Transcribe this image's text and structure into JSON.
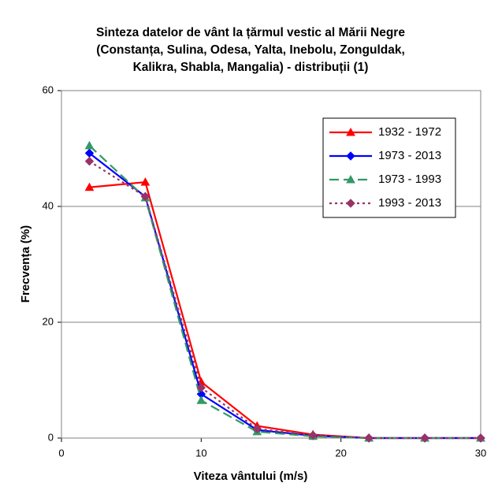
{
  "chart_data": {
    "type": "line",
    "title": [
      "Sinteza datelor de vânt la țărmul vestic al Mării Negre",
      "(Constanța, Sulina, Odesa, Yalta, Inebolu, Zonguldak,",
      "Kalikra, Shabla, Mangalia) - distribuții (1)"
    ],
    "x_label": "Viteza vântului (m/s)",
    "y_label": "Frecvența (%)",
    "x": [
      2,
      6,
      10,
      14,
      18,
      22,
      26,
      30
    ],
    "xlim": [
      0,
      30
    ],
    "xticks": [
      0,
      10,
      20,
      30
    ],
    "ylim": [
      0,
      60
    ],
    "yticks": [
      0,
      20,
      40,
      60
    ],
    "grid": true,
    "legend": "upper right",
    "series": [
      {
        "name": "1932 - 1972",
        "color": "#ff0000",
        "marker": "triangle",
        "dash": "solid",
        "values": [
          43.3,
          44.2,
          9.7,
          2.1,
          0.6,
          0,
          0,
          0
        ]
      },
      {
        "name": "1973 - 2013",
        "color": "#0000ff",
        "marker": "diamond",
        "dash": "solid",
        "values": [
          49.2,
          41.7,
          7.6,
          1.4,
          0.4,
          0,
          0,
          0
        ]
      },
      {
        "name": "1973 - 1993",
        "color": "#339966",
        "marker": "triangle",
        "dash": "dashed",
        "values": [
          50.5,
          41.5,
          6.5,
          1.1,
          0.3,
          0,
          0,
          0
        ]
      },
      {
        "name": "1993 - 2013",
        "color": "#993366",
        "marker": "diamond",
        "dash": "dotted",
        "values": [
          47.8,
          41.7,
          8.7,
          1.6,
          0.5,
          0,
          0,
          0
        ]
      }
    ]
  }
}
